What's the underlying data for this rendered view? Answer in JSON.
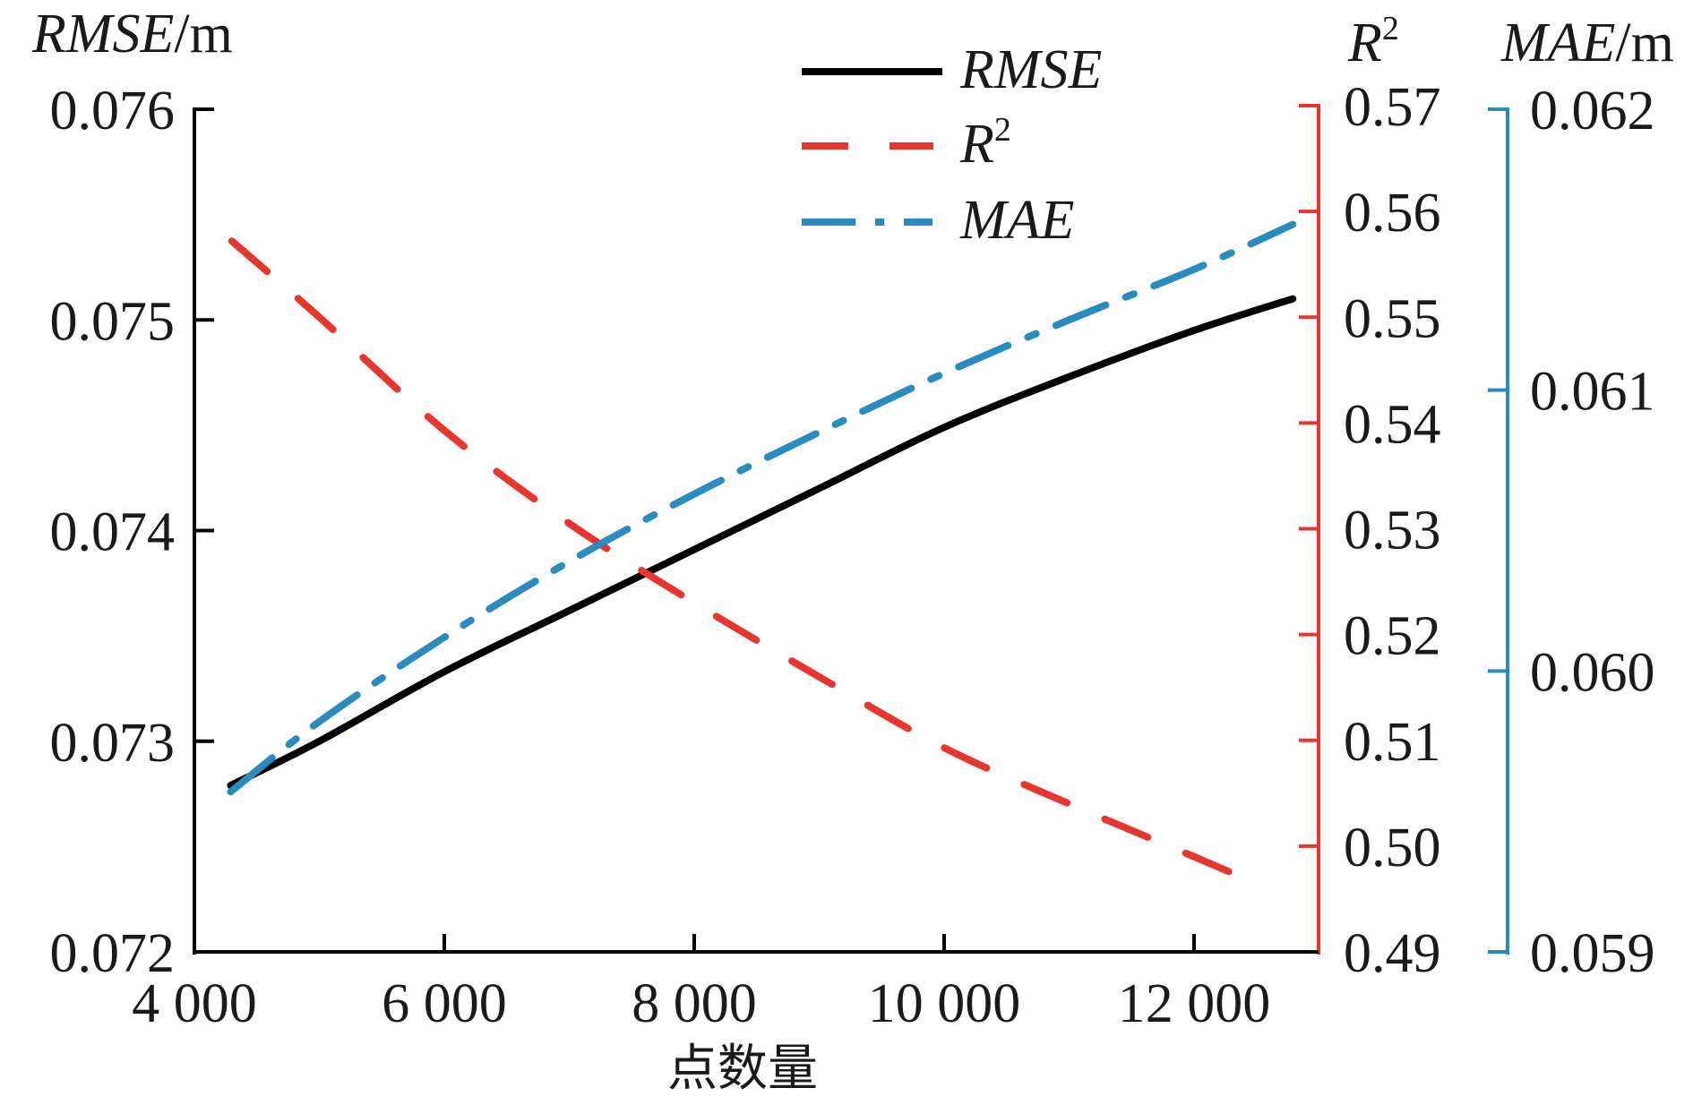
{
  "chart_data": {
    "type": "line",
    "title": "",
    "xlabel": "点数量",
    "xlim": [
      4000,
      12900
    ],
    "xticks": [
      4000,
      6000,
      8000,
      10000,
      12000
    ],
    "xtick_labels": [
      "4 000",
      "6 000",
      "8 000",
      "10 000",
      "12 000"
    ],
    "grid": false,
    "legend_position": "top-center",
    "axes": [
      {
        "id": "rmse",
        "side": "left",
        "label_main": "RMSE",
        "label_unit": "/m",
        "ylim": [
          0.072,
          0.076
        ],
        "ticks": [
          0.072,
          0.073,
          0.074,
          0.075,
          0.076
        ],
        "tick_labels": [
          "0.072",
          "0.073",
          "0.074",
          "0.075",
          "0.076"
        ],
        "color": "#000000"
      },
      {
        "id": "r2",
        "side": "right",
        "label_main": "R",
        "label_sup": "2",
        "ylim": [
          0.49,
          0.57
        ],
        "ticks": [
          0.49,
          0.5,
          0.51,
          0.52,
          0.53,
          0.54,
          0.55,
          0.56,
          0.57
        ],
        "tick_labels": [
          "0.49",
          "0.50",
          "0.51",
          "0.52",
          "0.53",
          "0.54",
          "0.55",
          "0.56",
          "0.57"
        ],
        "color": "#e8352e"
      },
      {
        "id": "mae",
        "side": "right-outer",
        "label_main": "MAE",
        "label_unit": "/m",
        "ylim": [
          0.059,
          0.062
        ],
        "ticks": [
          0.059,
          0.06,
          0.061,
          0.062
        ],
        "tick_labels": [
          "0.059",
          "0.060",
          "0.061",
          "0.062"
        ],
        "color": "#2a8bbf"
      }
    ],
    "series": [
      {
        "name": "RMSE",
        "axis": "rmse",
        "style": "solid",
        "color": "#000000",
        "x": [
          4290,
          5000,
          6000,
          7000,
          8000,
          9000,
          10000,
          11000,
          12000,
          12790
        ],
        "values": [
          0.07279,
          0.073,
          0.07333,
          0.07362,
          0.07391,
          0.0742,
          0.07449,
          0.07473,
          0.07495,
          0.0751
        ]
      },
      {
        "name": "R²",
        "axis": "r2",
        "style": "dashed",
        "color": "#e8352e",
        "x": [
          4300,
          5000,
          6000,
          7000,
          8000,
          9000,
          10000,
          11000,
          12000,
          12550
        ],
        "values": [
          0.5572,
          0.55,
          0.5393,
          0.5305,
          0.523,
          0.516,
          0.5093,
          0.504,
          0.499,
          0.4962
        ]
      },
      {
        "name": "MAE",
        "axis": "mae",
        "style": "dash-dot",
        "color": "#2a8bbf",
        "x": [
          4290,
          5000,
          6000,
          7000,
          8000,
          9000,
          10000,
          11000,
          12000,
          12790
        ],
        "values": [
          0.05957,
          0.05982,
          0.06012,
          0.06039,
          0.06063,
          0.06085,
          0.06106,
          0.06125,
          0.06143,
          0.06159
        ]
      }
    ],
    "legend": [
      {
        "label": "RMSE",
        "style": "solid",
        "color": "#000000"
      },
      {
        "label": "R",
        "sup": "2",
        "style": "dashed",
        "color": "#e8352e"
      },
      {
        "label": "MAE",
        "style": "dash-dot",
        "color": "#2a8bbf"
      }
    ]
  }
}
